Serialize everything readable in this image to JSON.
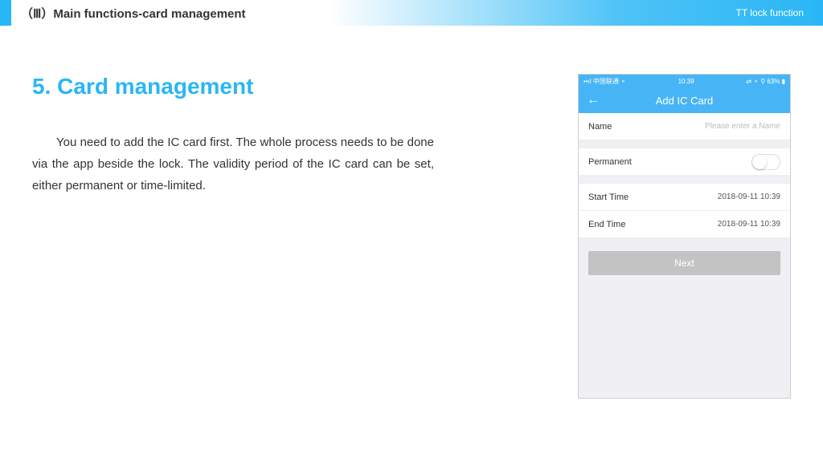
{
  "header": {
    "title": "（Ⅲ）Main functions-card management",
    "right_label": "TT lock function"
  },
  "section": {
    "heading": "5. Card management",
    "body": "You need to add the IC card first. The whole process needs to be done via the app beside the lock. The validity period of the IC card can be set, either permanent or time-limited."
  },
  "phone": {
    "status_left": "••ıl 中国联通 ⚬",
    "status_time": "10:39",
    "status_right": "⇄ ⚬ ⚲ 63% ▮",
    "nav_title": "Add IC Card",
    "name_label": "Name",
    "name_placeholder": "Please enter a Name",
    "permanent_label": "Permanent",
    "start_label": "Start Time",
    "start_value": "2018-09-11 10:39",
    "end_label": "End Time",
    "end_value": "2018-09-11 10:39",
    "next_label": "Next"
  }
}
